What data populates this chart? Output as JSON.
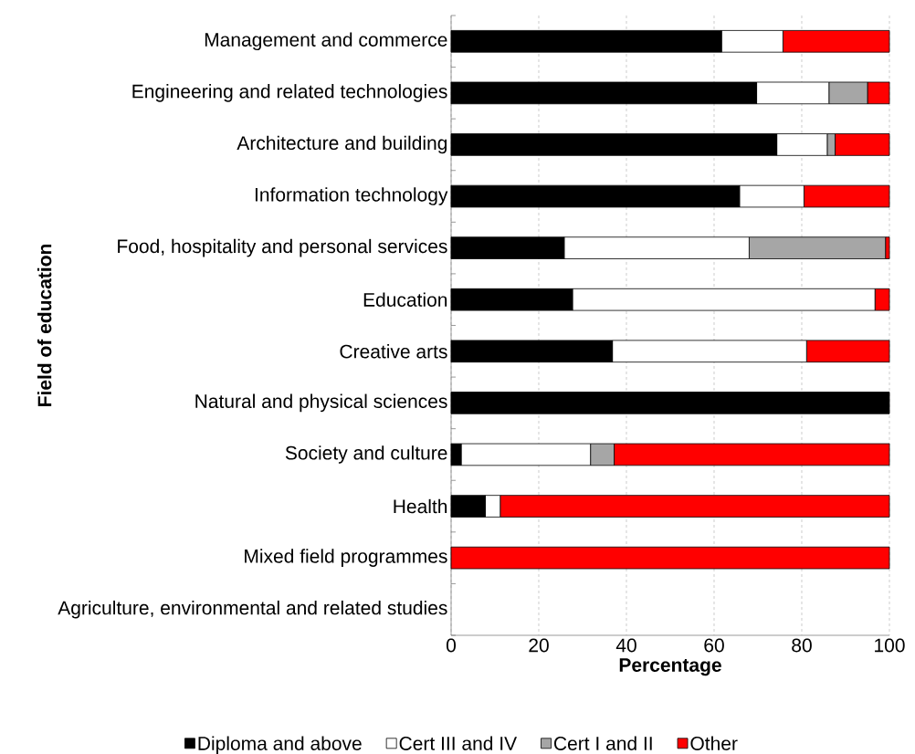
{
  "chart_data": {
    "type": "bar",
    "orientation": "horizontal",
    "stacked": true,
    "xlabel": "Percentage",
    "ylabel": "Field of education",
    "categories": [
      "Management and commerce",
      "Engineering and related technologies",
      "Architecture and building",
      "Information technology",
      "Food, hospitality and personal services",
      "Education",
      "Creative arts",
      "Natural and physical sciences",
      "Society and culture",
      "Health",
      "Mixed field programmes",
      "Agriculture, environmental and related studies"
    ],
    "series": [
      {
        "name": "Diploma and above",
        "color": "#000000",
        "values": [
          61.7,
          69.7,
          74.3,
          65.8,
          25.8,
          27.7,
          36.8,
          100,
          2.3,
          7.8,
          0,
          0
        ]
      },
      {
        "name": "Cert III and IV",
        "color": "#ffffff",
        "values": [
          14.0,
          16.5,
          11.5,
          14.7,
          42.2,
          69.0,
          44.3,
          0,
          29.5,
          3.4,
          0,
          0
        ]
      },
      {
        "name": "Cert I and II",
        "color": "#a6a6a6",
        "values": [
          0,
          8.8,
          1.8,
          0,
          31.1,
          0,
          0,
          0,
          5.4,
          0,
          0,
          0
        ]
      },
      {
        "name": "Other",
        "color": "#ff0000",
        "values": [
          24.3,
          5.0,
          12.4,
          19.5,
          0.9,
          3.3,
          18.9,
          0,
          62.8,
          88.8,
          100,
          0
        ]
      }
    ],
    "xlim": [
      0,
      100
    ],
    "xticks": [
      0,
      20,
      40,
      60,
      80,
      100
    ],
    "grid": "x",
    "legend": "bottom"
  }
}
